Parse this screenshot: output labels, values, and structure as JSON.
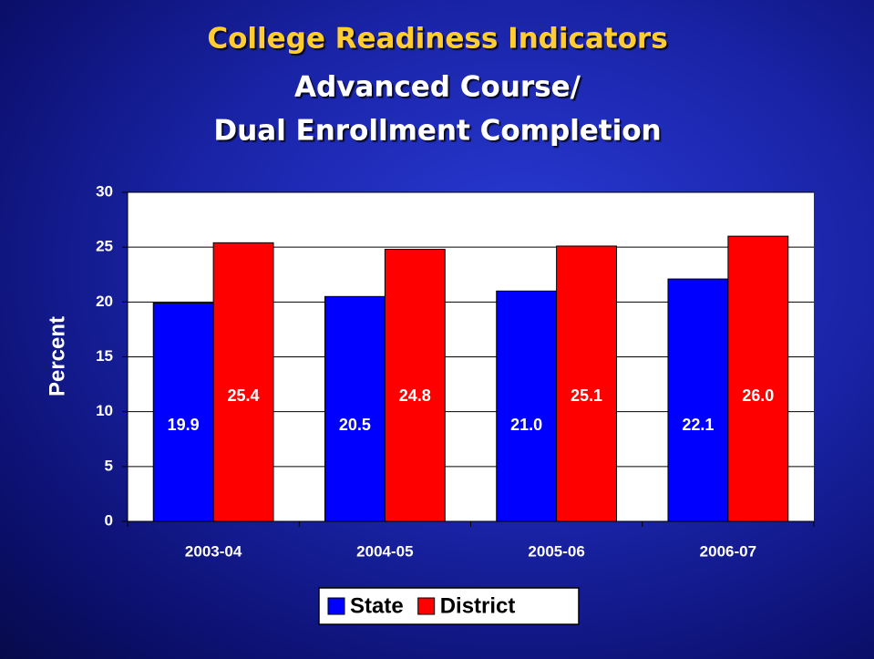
{
  "chart_data": {
    "type": "bar",
    "title": "College Readiness Indicators",
    "subtitle": [
      "Advanced Course/",
      "Dual Enrollment Completion"
    ],
    "y_label": "Percent",
    "categories": [
      "2003-04",
      "2004-05",
      "2005-06",
      "2006-07"
    ],
    "series": [
      {
        "name": "State",
        "color": "#0000ff",
        "values": [
          19.9,
          20.5,
          21.0,
          22.1
        ],
        "value_labels": [
          "19.9",
          "20.5",
          "21.0",
          "22.1"
        ]
      },
      {
        "name": "District",
        "color": "#ff0000",
        "values": [
          25.4,
          24.8,
          25.1,
          26.0
        ],
        "value_labels": [
          "25.4",
          "24.8",
          "25.1",
          "26.0"
        ]
      }
    ],
    "ylim": [
      0,
      30
    ],
    "yticks": [
      0,
      5,
      10,
      15,
      20,
      25,
      30
    ],
    "grid": true,
    "legend": "bottom"
  }
}
